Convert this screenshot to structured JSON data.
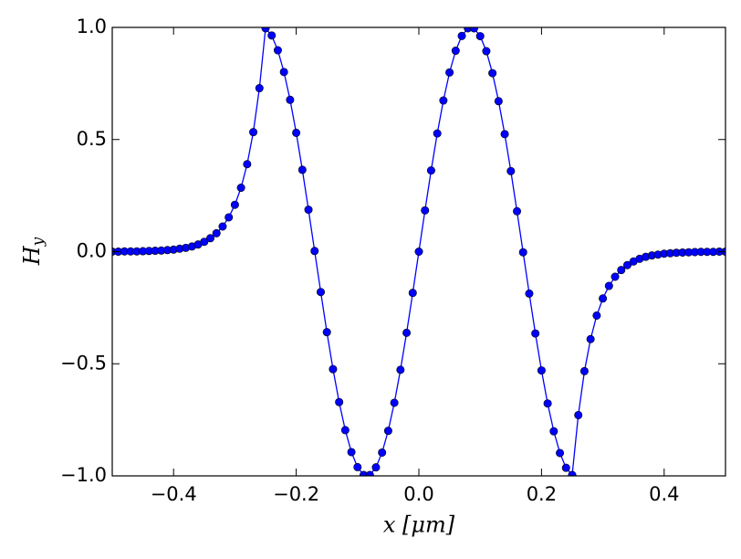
{
  "chart_data": {
    "type": "line",
    "x_label": "x [μm]",
    "y_label": {
      "main": "H",
      "sub": "y"
    },
    "x": [
      -0.5,
      -0.49,
      -0.48,
      -0.47,
      -0.46,
      -0.45,
      -0.44,
      -0.43,
      -0.42,
      -0.41,
      -0.4,
      -0.39,
      -0.38,
      -0.37,
      -0.36,
      -0.35,
      -0.34,
      -0.33,
      -0.32,
      -0.31,
      -0.3,
      -0.29,
      -0.28,
      -0.27,
      -0.26,
      -0.25,
      -0.24,
      -0.23,
      -0.22,
      -0.21,
      -0.2,
      -0.19,
      -0.18,
      -0.17,
      -0.16,
      -0.15,
      -0.14,
      -0.13,
      -0.12,
      -0.11,
      -0.1,
      -0.09,
      -0.08,
      -0.07,
      -0.06,
      -0.05,
      -0.04,
      -0.03,
      -0.02,
      -0.01,
      0,
      0.01,
      0.02,
      0.03,
      0.04,
      0.05,
      0.06,
      0.07,
      0.08,
      0.09,
      0.1,
      0.11,
      0.12,
      0.13,
      0.14,
      0.15,
      0.16,
      0.17,
      0.18,
      0.19,
      0.2,
      0.21,
      0.22,
      0.23,
      0.24,
      0.25,
      0.26,
      0.27,
      0.28,
      0.29,
      0.3,
      0.31,
      0.32,
      0.33,
      0.34,
      0.35,
      0.36,
      0.37,
      0.38,
      0.39,
      0.4,
      0.41,
      0.42,
      0.43,
      0.44,
      0.45,
      0.46,
      0.47,
      0.48,
      0.49,
      0.5
    ],
    "series": [
      {
        "name": "Hy",
        "color": "#0000ff",
        "values": [
          0,
          0,
          0.001,
          0.001,
          0.001,
          0.002,
          0.003,
          0.004,
          0.005,
          0.007,
          0.009,
          0.013,
          0.017,
          0.023,
          0.032,
          0.044,
          0.06,
          0.082,
          0.112,
          0.153,
          0.209,
          0.285,
          0.39,
          0.533,
          0.729,
          0.996,
          0.964,
          0.898,
          0.801,
          0.677,
          0.53,
          0.365,
          0.187,
          0.003,
          -0.18,
          -0.359,
          -0.524,
          -0.671,
          -0.796,
          -0.894,
          -0.961,
          -0.996,
          -0.996,
          -0.962,
          -0.896,
          -0.799,
          -0.674,
          -0.527,
          -0.362,
          -0.184,
          0,
          0.184,
          0.362,
          0.527,
          0.674,
          0.799,
          0.896,
          0.962,
          0.996,
          0.996,
          0.961,
          0.894,
          0.796,
          0.671,
          0.524,
          0.359,
          0.18,
          -0.003,
          -0.187,
          -0.365,
          -0.53,
          -0.677,
          -0.801,
          -0.898,
          -0.964,
          -0.996,
          -0.729,
          -0.533,
          -0.39,
          -0.285,
          -0.209,
          -0.153,
          -0.112,
          -0.082,
          -0.06,
          -0.044,
          -0.032,
          -0.023,
          -0.017,
          -0.013,
          -0.009,
          -0.007,
          -0.005,
          -0.004,
          -0.003,
          -0.002,
          -0.001,
          -0.001,
          -0.001,
          0,
          0
        ]
      }
    ],
    "xlim": [
      -0.5,
      0.5
    ],
    "ylim": [
      -1.0,
      1.0
    ],
    "xticks": [
      {
        "value": -0.4,
        "label": "−0.4"
      },
      {
        "value": -0.2,
        "label": "−0.2"
      },
      {
        "value": 0,
        "label": "0.0"
      },
      {
        "value": 0.2,
        "label": "0.2"
      },
      {
        "value": 0.4,
        "label": "0.4"
      }
    ],
    "yticks": [
      {
        "value": -1,
        "label": "−1.0"
      },
      {
        "value": -0.5,
        "label": "−0.5"
      },
      {
        "value": 0,
        "label": "0.0"
      },
      {
        "value": 0.5,
        "label": "0.5"
      },
      {
        "value": 1,
        "label": "1.0"
      }
    ],
    "grid": false
  }
}
